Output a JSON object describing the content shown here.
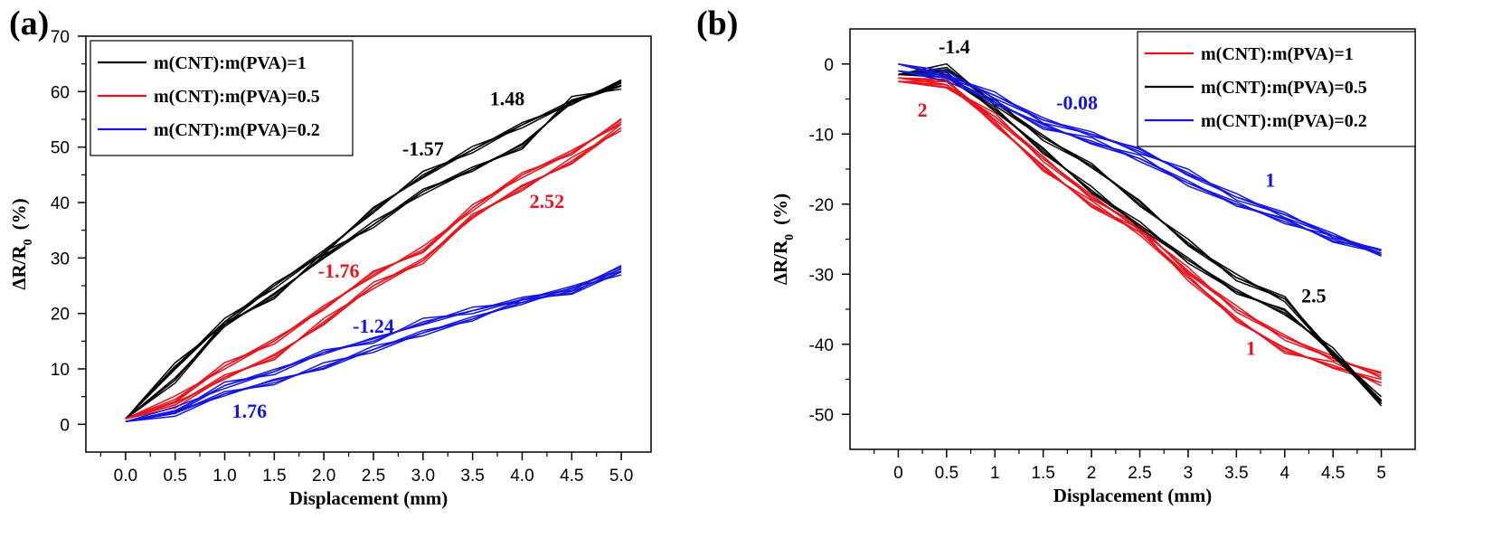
{
  "colors": {
    "black": "#000000",
    "red": "#e8141c",
    "blue": "#1515e0"
  },
  "chart_data": [
    {
      "type": "line",
      "panel_label": "(a)",
      "xlabel": "Displacement (mm)",
      "ylabel_main": "ΔR/R",
      "ylabel_sub": "0",
      "ylabel_unit": "(%)",
      "xlim": [
        -0.4,
        5.3
      ],
      "ylim": [
        -5,
        70
      ],
      "x_ticks": [
        0.0,
        0.5,
        1.0,
        1.5,
        2.0,
        2.5,
        3.0,
        3.5,
        4.0,
        4.5,
        5.0
      ],
      "x_tick_labels": [
        "0.0",
        "0.5",
        "1.0",
        "1.5",
        "2.0",
        "2.5",
        "3.0",
        "3.5",
        "4.0",
        "4.5",
        "5.0"
      ],
      "y_ticks": [
        0,
        10,
        20,
        30,
        40,
        50,
        60,
        70
      ],
      "y_tick_labels": [
        "0",
        "10",
        "20",
        "30",
        "40",
        "50",
        "60",
        "70"
      ],
      "grid": false,
      "legend_position": "top-left",
      "series": [
        {
          "name": "m(CNT):m(PVA)=1",
          "color": "#000000",
          "x": [
            0,
            0.5,
            1.0,
            1.5,
            2.0,
            2.5,
            3.0,
            3.5,
            4.0,
            4.5,
            5.0
          ],
          "loading": [
            1.0,
            10.5,
            18.5,
            25.0,
            31.0,
            38.5,
            45.0,
            49.5,
            54.0,
            58.0,
            61.5
          ],
          "unloading": [
            1.0,
            8.0,
            18.0,
            23.0,
            30.5,
            36.0,
            42.0,
            46.0,
            50.0,
            58.5,
            61.0
          ]
        },
        {
          "name": "m(CNT):m(PVA)=0.5",
          "color": "#e8141c",
          "x": [
            0,
            0.5,
            1.0,
            1.5,
            2.0,
            2.5,
            3.0,
            3.5,
            4.0,
            4.5,
            5.0
          ],
          "loading": [
            1.0,
            4.5,
            10.5,
            15.0,
            21.0,
            27.0,
            31.5,
            39.0,
            45.0,
            49.0,
            54.5
          ],
          "unloading": [
            1.0,
            3.5,
            8.5,
            12.0,
            18.5,
            25.0,
            29.5,
            37.5,
            42.5,
            47.5,
            53.5
          ]
        },
        {
          "name": "m(CNT):m(PVA)=0.2",
          "color": "#1515e0",
          "x": [
            0,
            0.5,
            1.0,
            1.5,
            2.0,
            2.5,
            3.0,
            3.5,
            4.0,
            4.5,
            5.0
          ],
          "loading": [
            0.5,
            2.5,
            7.0,
            9.5,
            13.0,
            15.0,
            18.5,
            20.5,
            22.5,
            24.5,
            28.0
          ],
          "unloading": [
            0.5,
            2.0,
            5.5,
            7.5,
            10.5,
            13.5,
            16.5,
            19.0,
            22.0,
            24.0,
            27.5
          ]
        }
      ],
      "annotations": [
        {
          "text": "1.48",
          "x": 3.85,
          "y": 57.5,
          "color": "#000000"
        },
        {
          "text": "-1.57",
          "x": 3.0,
          "y": 48.5,
          "color": "#000000"
        },
        {
          "text": "2.52",
          "x": 4.25,
          "y": 39.0,
          "color": "#e8141c"
        },
        {
          "text": "-1.76",
          "x": 2.15,
          "y": 26.5,
          "color": "#e8141c"
        },
        {
          "text": "-1.24",
          "x": 2.5,
          "y": 16.5,
          "color": "#1515e0"
        },
        {
          "text": "1.76",
          "x": 1.25,
          "y": 1.2,
          "color": "#1515e0"
        }
      ]
    },
    {
      "type": "line",
      "panel_label": "(b)",
      "xlabel": "Displacement (mm)",
      "ylabel_main": "ΔR/R",
      "ylabel_sub": "0",
      "ylabel_unit": "(%)",
      "xlim": [
        -0.5,
        5.35
      ],
      "ylim": [
        -55,
        5
      ],
      "x_ticks": [
        0,
        0.5,
        1,
        1.5,
        2,
        2.5,
        3,
        3.5,
        4,
        4.5,
        5
      ],
      "x_tick_labels": [
        "0",
        "0.5",
        "1",
        "1.5",
        "2",
        "2.5",
        "3",
        "3.5",
        "4",
        "4.5",
        "5"
      ],
      "y_ticks": [
        0,
        -10,
        -20,
        -30,
        -40,
        -50
      ],
      "y_tick_labels": [
        "0",
        "-10",
        "-20",
        "-30",
        "-40",
        "-50"
      ],
      "grid": false,
      "legend_position": "top-right",
      "series": [
        {
          "name": "m(CNT):m(PVA)=1",
          "color": "#e8141c",
          "x": [
            0,
            0.5,
            1.0,
            1.5,
            2.0,
            2.5,
            3.0,
            3.5,
            4.0,
            4.5,
            5.0
          ],
          "loading": [
            -2.5,
            -3.0,
            -7.5,
            -13.5,
            -19.0,
            -23.5,
            -29.5,
            -35.0,
            -39.0,
            -42.0,
            -44.5
          ],
          "unloading": [
            -2.0,
            -2.5,
            -8.5,
            -15.0,
            -20.0,
            -24.0,
            -30.5,
            -36.5,
            -41.0,
            -43.0,
            -45.5
          ]
        },
        {
          "name": "m(CNT):m(PVA)=0.5",
          "color": "#000000",
          "x": [
            0,
            0.5,
            1.0,
            1.5,
            2.0,
            2.5,
            3.0,
            3.5,
            4.0,
            4.5,
            5.0
          ],
          "loading": [
            -1.5,
            -0.5,
            -5.5,
            -10.5,
            -14.5,
            -20.0,
            -25.5,
            -30.5,
            -33.5,
            -41.5,
            -48.5
          ],
          "unloading": [
            -1.5,
            -1.5,
            -6.5,
            -12.5,
            -18.0,
            -23.0,
            -28.0,
            -32.5,
            -35.5,
            -41.0,
            -48.0
          ]
        },
        {
          "name": "m(CNT):m(PVA)=0.2",
          "color": "#1515e0",
          "x": [
            0,
            0.5,
            1.0,
            1.5,
            2.0,
            2.5,
            3.0,
            3.5,
            4.0,
            4.5,
            5.0
          ],
          "loading": [
            0.0,
            -1.5,
            -4.5,
            -8.0,
            -10.0,
            -12.5,
            -15.5,
            -19.0,
            -21.5,
            -24.5,
            -27.0
          ],
          "unloading": [
            -1.0,
            -2.0,
            -5.5,
            -9.0,
            -11.0,
            -13.5,
            -17.0,
            -20.0,
            -22.5,
            -25.0,
            -27.0
          ]
        }
      ],
      "annotations": [
        {
          "text": "-1.4",
          "x": 0.58,
          "y": 1.5,
          "color": "#000000"
        },
        {
          "text": "-0.08",
          "x": 1.85,
          "y": -6.5,
          "color": "#1515e0"
        },
        {
          "text": "2",
          "x": 0.25,
          "y": -7.5,
          "color": "#e8141c"
        },
        {
          "text": "1",
          "x": 3.85,
          "y": -17.5,
          "color": "#1515e0"
        },
        {
          "text": "2.5",
          "x": 4.3,
          "y": -34.0,
          "color": "#000000"
        },
        {
          "text": "1",
          "x": 3.65,
          "y": -41.5,
          "color": "#e8141c"
        }
      ]
    }
  ]
}
